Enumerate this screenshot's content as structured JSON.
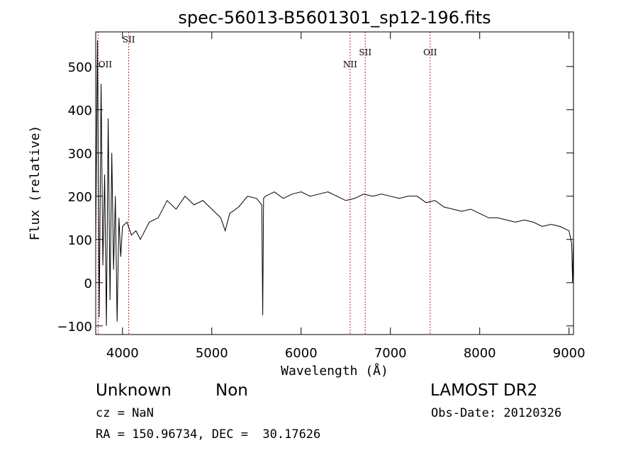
{
  "chart_data": {
    "type": "line",
    "title": "spec-56013-B5601301_sp12-196.fits",
    "xlabel": "Wavelength (Å)",
    "ylabel": "Flux (relative)",
    "xlim": [
      3700,
      9050
    ],
    "ylim": [
      -120,
      580
    ],
    "x_ticks": [
      4000,
      5000,
      6000,
      7000,
      8000,
      9000
    ],
    "y_ticks": [
      -100,
      0,
      100,
      200,
      300,
      400,
      500
    ],
    "grid": false,
    "line_color": "#000000",
    "marker_color": "#b03020",
    "spectrum": {
      "name": "",
      "x": [
        3700,
        3720,
        3740,
        3760,
        3780,
        3800,
        3820,
        3840,
        3860,
        3880,
        3900,
        3920,
        3940,
        3960,
        3980,
        4000,
        4050,
        4100,
        4150,
        4200,
        4300,
        4400,
        4500,
        4600,
        4700,
        4800,
        4900,
        5000,
        5100,
        5150,
        5200,
        5300,
        5400,
        5500,
        5560,
        5570,
        5580,
        5600,
        5700,
        5800,
        5900,
        6000,
        6100,
        6200,
        6300,
        6400,
        6500,
        6600,
        6700,
        6800,
        6900,
        7000,
        7100,
        7200,
        7300,
        7400,
        7500,
        7600,
        7700,
        7800,
        7900,
        8000,
        8100,
        8200,
        8300,
        8400,
        8500,
        8600,
        8700,
        8800,
        8900,
        9000,
        9030,
        9040,
        9050
      ],
      "y": [
        90,
        560,
        -80,
        460,
        40,
        250,
        -100,
        380,
        -40,
        300,
        30,
        200,
        -90,
        150,
        60,
        130,
        140,
        110,
        120,
        100,
        140,
        150,
        190,
        170,
        200,
        180,
        190,
        170,
        150,
        120,
        160,
        175,
        200,
        195,
        180,
        -75,
        195,
        200,
        210,
        195,
        205,
        210,
        200,
        205,
        210,
        200,
        190,
        195,
        205,
        200,
        205,
        200,
        195,
        200,
        200,
        185,
        190,
        175,
        170,
        165,
        170,
        160,
        150,
        150,
        145,
        140,
        145,
        140,
        130,
        135,
        130,
        120,
        90,
        0,
        110
      ]
    },
    "line_markers": [
      {
        "label": "OII",
        "x": 3727
      },
      {
        "label": "SII",
        "x": 4070
      },
      {
        "label": "NII",
        "x": 6549
      },
      {
        "label": "SII",
        "x": 6718
      },
      {
        "label": "OII",
        "x": 7445
      }
    ]
  },
  "info": {
    "object_type": "Unknown",
    "object_subclass": "Non",
    "survey": "LAMOST DR2",
    "cz": "cz = NaN",
    "obs_date": "Obs-Date: 20120326",
    "ra_dec": "RA = 150.96734, DEC =  30.17626"
  }
}
